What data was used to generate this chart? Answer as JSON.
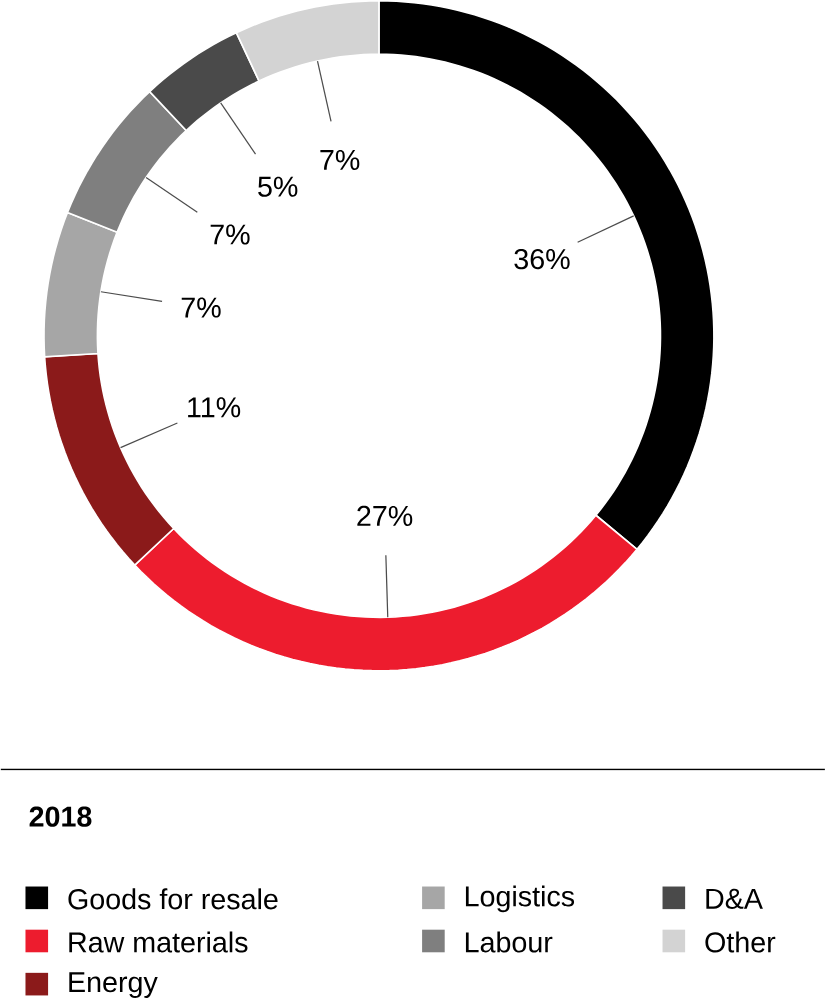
{
  "chart_data": {
    "type": "donut",
    "title": "2018",
    "categories": [
      "Goods for resale",
      "Raw materials",
      "Energy",
      "Logistics",
      "Labour",
      "D&A",
      "Other"
    ],
    "values": [
      36,
      27,
      11,
      7,
      7,
      5,
      7
    ],
    "value_labels": [
      "36%",
      "27%",
      "11%",
      "7%",
      "7%",
      "5%",
      "7%"
    ],
    "colors": [
      "#000000",
      "#ed1c2e",
      "#8b1a1a",
      "#a6a6a6",
      "#7f7f7f",
      "#4a4a4a",
      "#d3d3d3"
    ],
    "legend": "bottom"
  }
}
